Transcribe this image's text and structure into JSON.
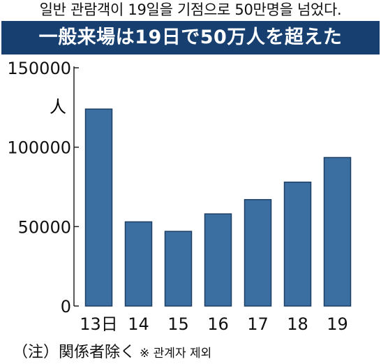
{
  "top_caption": "일반 관람객이 19일을 기점으로 50만명을 넘었다.",
  "banner_title": "一般来場は19日で50万人を超えた",
  "note": "（注）関係者除く",
  "note_translation": "※ 관계자 제외",
  "colors": {
    "banner": "#173f70",
    "bar": "#3c6fa1",
    "bar_edge": "#1d3f66",
    "axis": "#222222"
  },
  "chart_data": {
    "type": "bar",
    "categories": [
      "13日",
      "14",
      "15",
      "16",
      "17",
      "18",
      "19"
    ],
    "values": [
      124000,
      53000,
      47000,
      58000,
      67000,
      78000,
      93500
    ],
    "ylabel": "人",
    "ylim": [
      0,
      150000
    ],
    "yticks": [
      0,
      50000,
      100000,
      150000
    ],
    "ytick_labels": [
      "0",
      "50000",
      "100000",
      "150000"
    ],
    "grid": false
  }
}
